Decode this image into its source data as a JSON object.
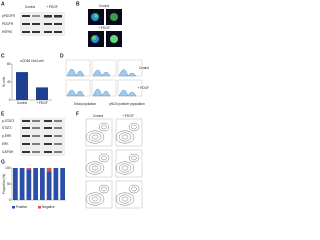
{
  "panels": {
    "a": {
      "letter": "A",
      "columns": [
        "Control",
        "+ PDGF"
      ],
      "rows": [
        "pPDGFR",
        "PDGFR",
        "HSP90"
      ]
    },
    "b": {
      "letter": "B",
      "columns": [
        "Control",
        "+ PDGF"
      ]
    },
    "c": {
      "letter": "C"
    },
    "d": {
      "letter": "D",
      "columns": [
        "Total population",
        "pNO4 positive population"
      ],
      "rows": [
        "Control",
        "+ PDGF"
      ]
    },
    "e": {
      "letter": "E",
      "rows": [
        "p-STAT3",
        "STAT3",
        "p-ERK",
        "ERK",
        "GAPDH"
      ]
    },
    "f": {
      "letter": "F",
      "columns": [
        "Control",
        "+ PDGF"
      ]
    },
    "g": {
      "letter": "G"
    }
  },
  "chart_data": [
    {
      "type": "bar",
      "title": "sCD56 Oct4-cell",
      "y_label": "% cells",
      "categories": [
        "Control",
        "+ PDGF"
      ],
      "values": [
        62,
        28
      ],
      "color": "#1f3f8f",
      "ylim": [
        0,
        80
      ],
      "yticks": [
        0,
        40,
        80
      ]
    },
    {
      "type": "stacked_bar",
      "y_label": "Proportion (%)",
      "categories": [
        null,
        null,
        null,
        null,
        null,
        null,
        null,
        null
      ],
      "series": [
        {
          "name": "Positive",
          "color": "#2b4ea8",
          "values": [
            100,
            100,
            96,
            100,
            100,
            90,
            100,
            100
          ]
        },
        {
          "name": "Negative",
          "color": "#d9534f",
          "values": [
            0,
            0,
            4,
            0,
            0,
            10,
            0,
            0
          ]
        }
      ],
      "ylim": [
        0,
        100
      ],
      "yticks": [
        0,
        50,
        100
      ]
    }
  ]
}
